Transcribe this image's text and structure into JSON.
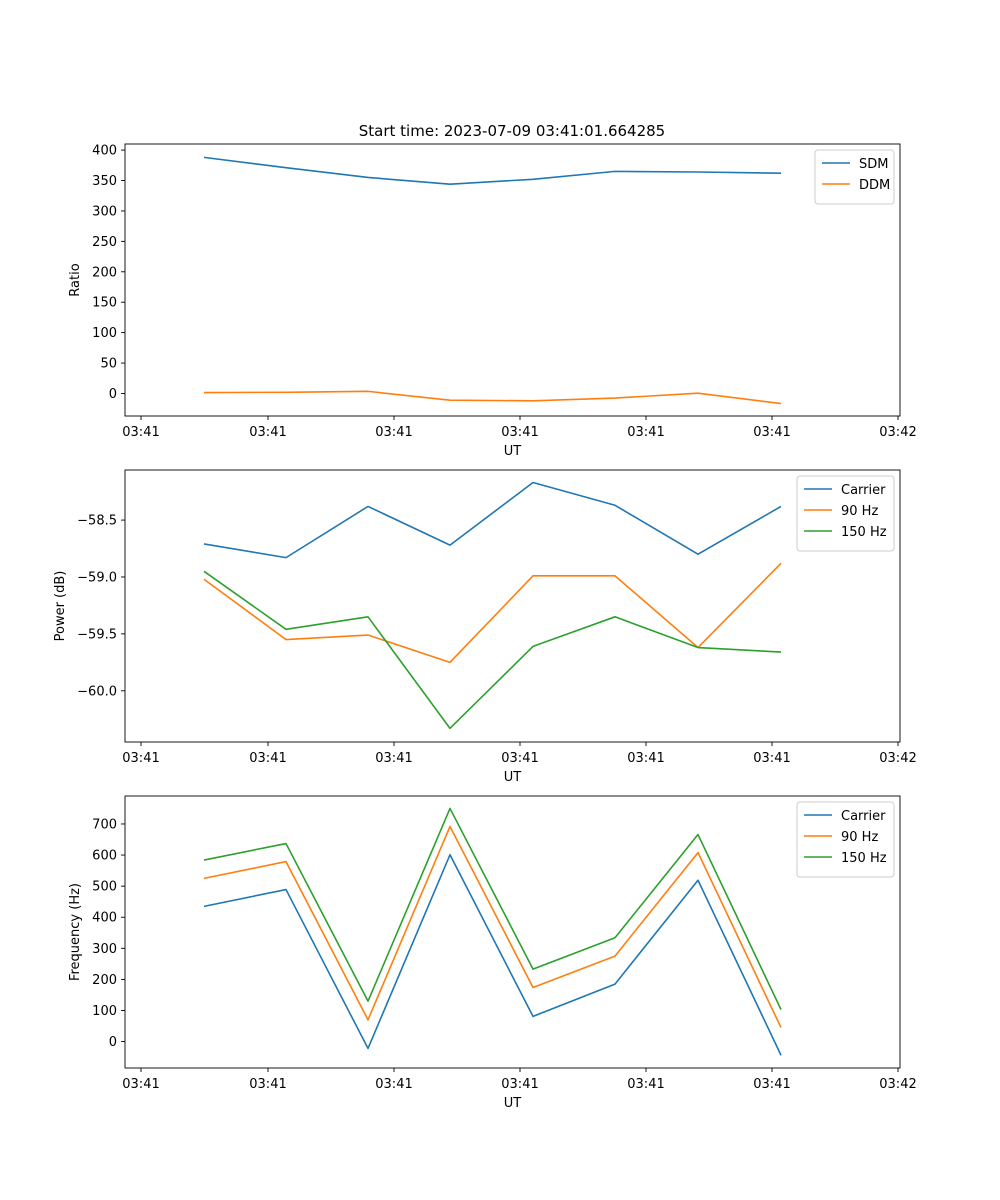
{
  "figure": {
    "title": "Start time: 2023-07-09 03:41:01.664285"
  },
  "chart_data": [
    {
      "type": "line",
      "xlabel": "UT",
      "ylabel": "Ratio",
      "x_tick_labels": [
        "03:41",
        "03:41",
        "03:41",
        "03:41",
        "03:41",
        "03:41",
        "03:42"
      ],
      "ylim": [
        -37,
        410
      ],
      "y_ticks": [
        0,
        50,
        100,
        150,
        200,
        250,
        300,
        350,
        400
      ],
      "y_tick_labels": [
        "0",
        "50",
        "100",
        "150",
        "200",
        "250",
        "300",
        "350",
        "400"
      ],
      "legend_position": "top-right",
      "series": [
        {
          "name": "SDM",
          "color": "#1f77b4",
          "values": [
            388,
            371,
            355,
            344,
            352,
            365,
            364,
            362
          ]
        },
        {
          "name": "DDM",
          "color": "#ff7f0e",
          "values": [
            1.5,
            2.0,
            3.5,
            -11,
            -12,
            -7.5,
            0.5,
            -16.5
          ]
        }
      ]
    },
    {
      "type": "line",
      "xlabel": "UT",
      "ylabel": "Power (dB)",
      "x_tick_labels": [
        "03:41",
        "03:41",
        "03:41",
        "03:41",
        "03:41",
        "03:41",
        "03:42"
      ],
      "ylim": [
        -60.45,
        -58.06
      ],
      "y_ticks": [
        -60.0,
        -59.5,
        -59.0,
        -58.5
      ],
      "y_tick_labels": [
        "−60.0",
        "−59.5",
        "−59.0",
        "−58.5"
      ],
      "legend_position": "top-right",
      "series": [
        {
          "name": "Carrier",
          "color": "#1f77b4",
          "values": [
            -58.71,
            -58.83,
            -58.38,
            -58.72,
            -58.17,
            -58.37,
            -58.8,
            -58.38
          ]
        },
        {
          "name": "90 Hz",
          "color": "#ff7f0e",
          "values": [
            -59.02,
            -59.55,
            -59.51,
            -59.75,
            -58.99,
            -58.99,
            -59.62,
            -58.88
          ]
        },
        {
          "name": "150 Hz",
          "color": "#2ca02c",
          "values": [
            -58.95,
            -59.46,
            -59.35,
            -60.33,
            -59.61,
            -59.35,
            -59.62,
            -59.66
          ]
        }
      ]
    },
    {
      "type": "line",
      "xlabel": "UT",
      "ylabel": "Frequency (Hz)",
      "x_tick_labels": [
        "03:41",
        "03:41",
        "03:41",
        "03:41",
        "03:41",
        "03:41",
        "03:42"
      ],
      "ylim": [
        -85,
        790
      ],
      "y_ticks": [
        0,
        100,
        200,
        300,
        400,
        500,
        600,
        700
      ],
      "y_tick_labels": [
        "0",
        "100",
        "200",
        "300",
        "400",
        "500",
        "600",
        "700"
      ],
      "legend_position": "top-right",
      "series": [
        {
          "name": "Carrier",
          "color": "#1f77b4",
          "values": [
            435,
            489,
            -22,
            601,
            81,
            185,
            519,
            -44
          ]
        },
        {
          "name": "90 Hz",
          "color": "#ff7f0e",
          "values": [
            525,
            579,
            70,
            692,
            174,
            275,
            608,
            45
          ]
        },
        {
          "name": "150 Hz",
          "color": "#2ca02c",
          "values": [
            584,
            637,
            130,
            750,
            233,
            334,
            666,
            103
          ]
        }
      ]
    }
  ]
}
